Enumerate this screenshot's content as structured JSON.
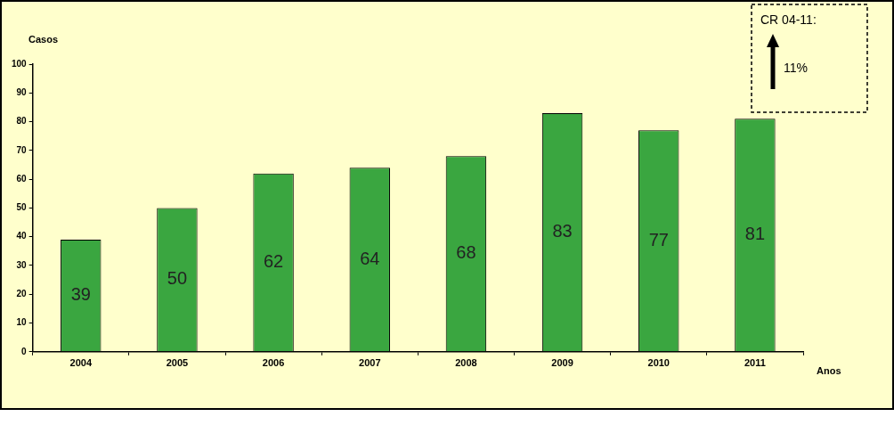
{
  "chart_data": {
    "type": "bar",
    "categories": [
      "2004",
      "2005",
      "2006",
      "2007",
      "2008",
      "2009",
      "2010",
      "2011"
    ],
    "values": [
      39,
      50,
      62,
      64,
      68,
      83,
      77,
      81
    ],
    "color": "#3aa640",
    "ylim": [
      0,
      100
    ],
    "yticks": [
      0,
      10,
      20,
      30,
      40,
      50,
      60,
      70,
      80,
      90,
      100
    ],
    "grid": false,
    "data_labels": true,
    "y_label": "Casos",
    "x_label": "Anos",
    "annotations": [
      "CR 04-11:",
      "11%"
    ]
  }
}
